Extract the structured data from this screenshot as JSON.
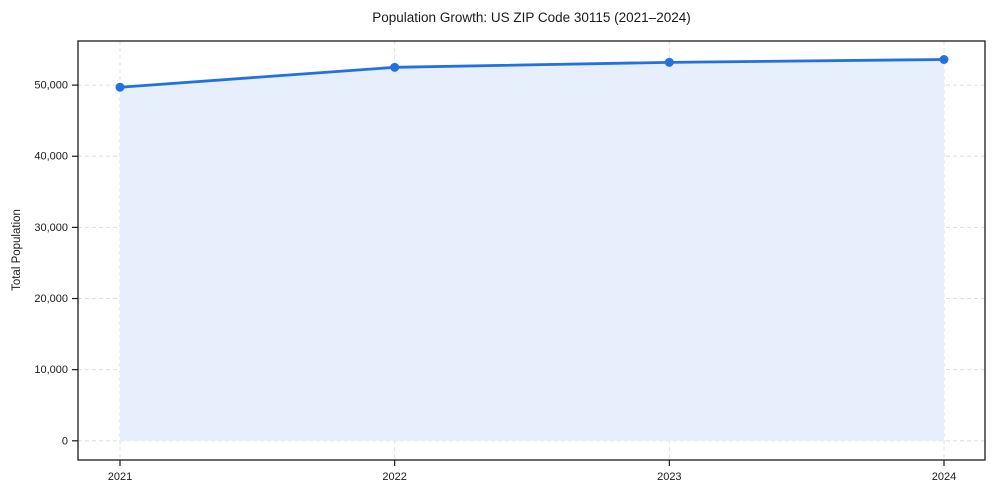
{
  "figure": {
    "title": "Population Growth: US ZIP Code 30115 (2021–2024)",
    "y_axis_label": "Total Population"
  },
  "chart_data": {
    "type": "area",
    "title": "Population Growth: US ZIP Code 30115 (2021–2024)",
    "xlabel": "",
    "ylabel": "Total Population",
    "categories": [
      "2021",
      "2022",
      "2023",
      "2024"
    ],
    "series": [
      {
        "name": "Total Population",
        "values": [
          49700,
          52500,
          53200,
          53600
        ]
      }
    ],
    "yticks": [
      0,
      10000,
      20000,
      30000,
      40000,
      50000
    ],
    "ytick_labels": [
      "0",
      "10,000",
      "20,000",
      "30,000",
      "40,000",
      "50,000"
    ],
    "ylim": [
      -2700,
      56200
    ],
    "grid": true,
    "legend": "none",
    "line_color": "#2271e0",
    "fill_color": "#e8effc",
    "marker": "circle"
  }
}
